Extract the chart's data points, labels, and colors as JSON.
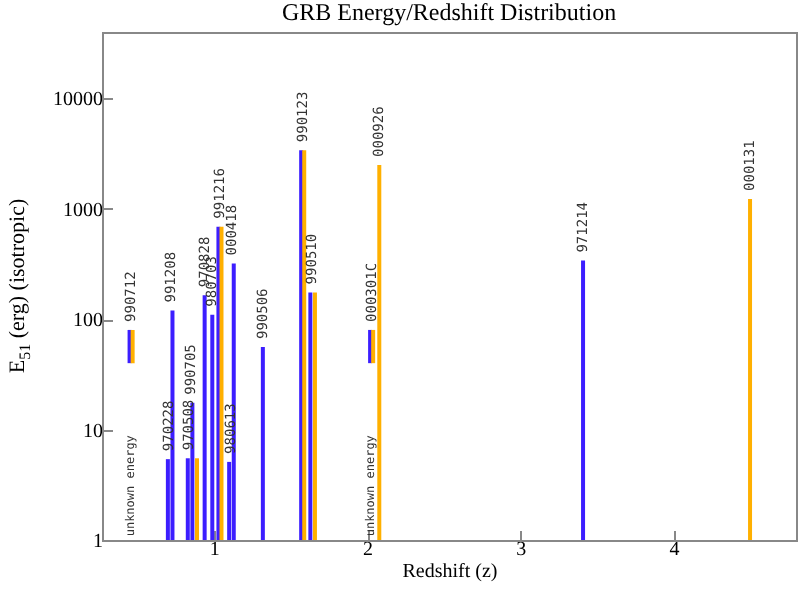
{
  "chart_data": {
    "type": "bar",
    "title": "GRB Energy/Redshift Distribution",
    "xlabel": "Redshift (z)",
    "ylabel": "E$_{51}$ (erg) (isotropic)",
    "log": "y",
    "grid": false,
    "xlim": [
      0.27,
      4.8
    ],
    "xticks": [
      1,
      2,
      3,
      4
    ],
    "ylim": [
      1,
      40000
    ],
    "yticks": [
      1,
      10,
      100,
      1000,
      10000
    ],
    "series": [
      {
        "color": "#3c1eff",
        "x": [
          0.45,
          0.7,
          0.73,
          0.83,
          0.86,
          0.94,
          0.99,
          1.03,
          1.1,
          1.13,
          1.32,
          1.57,
          1.63,
          2.02,
          3.41
        ],
        "base": [
          40,
          null,
          null,
          null,
          null,
          null,
          null,
          null,
          null,
          null,
          null,
          null,
          null,
          40,
          null
        ],
        "values": [
          40,
          5.4,
          120,
          5.5,
          17.5,
          165,
          110,
          690,
          5.1,
          320,
          56,
          3400,
          175,
          40,
          340
        ]
      },
      {
        "color": "#ffb000",
        "x": [
          0.47,
          0.89,
          1.05,
          1.59,
          1.66,
          2.04,
          2.08,
          4.5
        ],
        "base": [
          40,
          null,
          null,
          null,
          null,
          40,
          null,
          null
        ],
        "values": [
          40,
          5.5,
          690,
          3400,
          175,
          40,
          2500,
          1230
        ]
      }
    ],
    "annotations": [
      {
        "text": "990712",
        "x": 0.46,
        "y": 80
      },
      {
        "text": "970228",
        "x": 0.71,
        "y": 5.4
      },
      {
        "text": "991208",
        "x": 0.72,
        "y": 120
      },
      {
        "text": "970508",
        "x": 0.835,
        "y": 5.5
      },
      {
        "text": "990705",
        "x": 0.85,
        "y": 17.5
      },
      {
        "text": "970828",
        "x": 0.94,
        "y": 165
      },
      {
        "text": "980703",
        "x": 0.99,
        "y": 110
      },
      {
        "text": "991216",
        "x": 1.04,
        "y": 690
      },
      {
        "text": "980613",
        "x": 1.11,
        "y": 5.1
      },
      {
        "text": "000418",
        "x": 1.12,
        "y": 320
      },
      {
        "text": "990506",
        "x": 1.32,
        "y": 56
      },
      {
        "text": "990123",
        "x": 1.58,
        "y": 3400
      },
      {
        "text": "990510",
        "x": 1.64,
        "y": 175
      },
      {
        "text": "000301C",
        "x": 2.03,
        "y": 80
      },
      {
        "text": "000926",
        "x": 2.08,
        "y": 2500
      },
      {
        "text": "971214",
        "x": 3.41,
        "y": 340
      },
      {
        "text": "000131",
        "x": 4.5,
        "y": 1230
      },
      "unknown energy",
      "unknown energy"
    ]
  }
}
